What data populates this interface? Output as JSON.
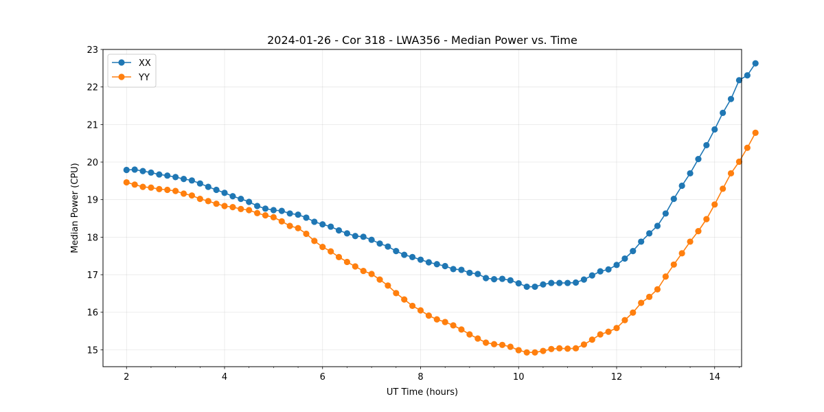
{
  "chart_data": {
    "type": "line",
    "title": "2024-01-26 - Cor 318 - LWA356 - Median Power vs. Time",
    "xlabel": "UT Time (hours)",
    "ylabel": "Median Power (CPU)",
    "xlim": [
      1.52,
      14.55
    ],
    "ylim": [
      14.55,
      23.0
    ],
    "xticks": [
      2,
      4,
      6,
      8,
      10,
      12,
      14
    ],
    "yticks": [
      15,
      16,
      17,
      18,
      19,
      20,
      21,
      22,
      23
    ],
    "xminor_step": 0.5,
    "grid": true,
    "legend_position": "upper-left",
    "x": [
      2.0,
      2.167,
      2.333,
      2.5,
      2.667,
      2.833,
      3.0,
      3.167,
      3.333,
      3.5,
      3.667,
      3.833,
      4.0,
      4.167,
      4.333,
      4.5,
      4.667,
      4.833,
      5.0,
      5.167,
      5.333,
      5.5,
      5.667,
      5.833,
      6.0,
      6.167,
      6.333,
      6.5,
      6.667,
      6.833,
      7.0,
      7.167,
      7.333,
      7.5,
      7.667,
      7.833,
      8.0,
      8.167,
      8.333,
      8.5,
      8.667,
      8.833,
      9.0,
      9.167,
      9.333,
      9.5,
      9.667,
      9.833,
      10.0,
      10.167,
      10.333,
      10.5,
      10.667,
      10.833,
      11.0,
      11.167,
      11.333,
      11.5,
      11.667,
      11.833,
      12.0,
      12.167,
      12.333,
      12.5,
      12.667,
      12.833,
      13.0,
      13.167,
      13.333,
      13.5,
      13.667,
      13.833,
      14.0,
      14.167,
      14.333,
      14.5,
      14.667,
      14.833
    ],
    "series": [
      {
        "name": "XX",
        "color": "#1f77b4",
        "values": [
          19.79,
          19.8,
          19.76,
          19.72,
          19.67,
          19.64,
          19.6,
          19.55,
          19.51,
          19.43,
          19.34,
          19.26,
          19.18,
          19.09,
          19.02,
          18.94,
          18.83,
          18.76,
          18.72,
          18.7,
          18.63,
          18.6,
          18.52,
          18.41,
          18.34,
          18.28,
          18.18,
          18.1,
          18.03,
          18.01,
          17.93,
          17.83,
          17.75,
          17.63,
          17.53,
          17.47,
          17.4,
          17.33,
          17.28,
          17.23,
          17.15,
          17.13,
          17.05,
          17.02,
          16.91,
          16.88,
          16.89,
          16.85,
          16.77,
          16.68,
          16.68,
          16.74,
          16.78,
          16.78,
          16.78,
          16.79,
          16.87,
          16.98,
          17.09,
          17.14,
          17.26,
          17.43,
          17.63,
          17.88,
          18.1,
          18.3,
          18.63,
          19.02,
          19.37,
          19.7,
          20.08,
          20.45,
          20.87,
          21.31,
          21.68,
          22.18,
          22.31,
          22.63
        ]
      },
      {
        "name": "YY",
        "color": "#ff7f0e",
        "values": [
          19.46,
          19.4,
          19.34,
          19.32,
          19.28,
          19.26,
          19.23,
          19.16,
          19.11,
          19.02,
          18.96,
          18.89,
          18.83,
          18.8,
          18.75,
          18.72,
          18.64,
          18.58,
          18.53,
          18.42,
          18.3,
          18.24,
          18.09,
          17.9,
          17.74,
          17.62,
          17.47,
          17.34,
          17.22,
          17.1,
          17.02,
          16.87,
          16.71,
          16.51,
          16.34,
          16.17,
          16.05,
          15.91,
          15.81,
          15.74,
          15.65,
          15.54,
          15.41,
          15.3,
          15.19,
          15.15,
          15.13,
          15.08,
          14.99,
          14.93,
          14.93,
          14.97,
          15.02,
          15.04,
          15.03,
          15.04,
          15.14,
          15.27,
          15.41,
          15.48,
          15.58,
          15.79,
          15.99,
          16.25,
          16.41,
          16.61,
          16.95,
          17.27,
          17.57,
          17.88,
          18.16,
          18.48,
          18.87,
          19.29,
          19.7,
          20.01,
          20.38,
          20.78
        ]
      }
    ]
  }
}
